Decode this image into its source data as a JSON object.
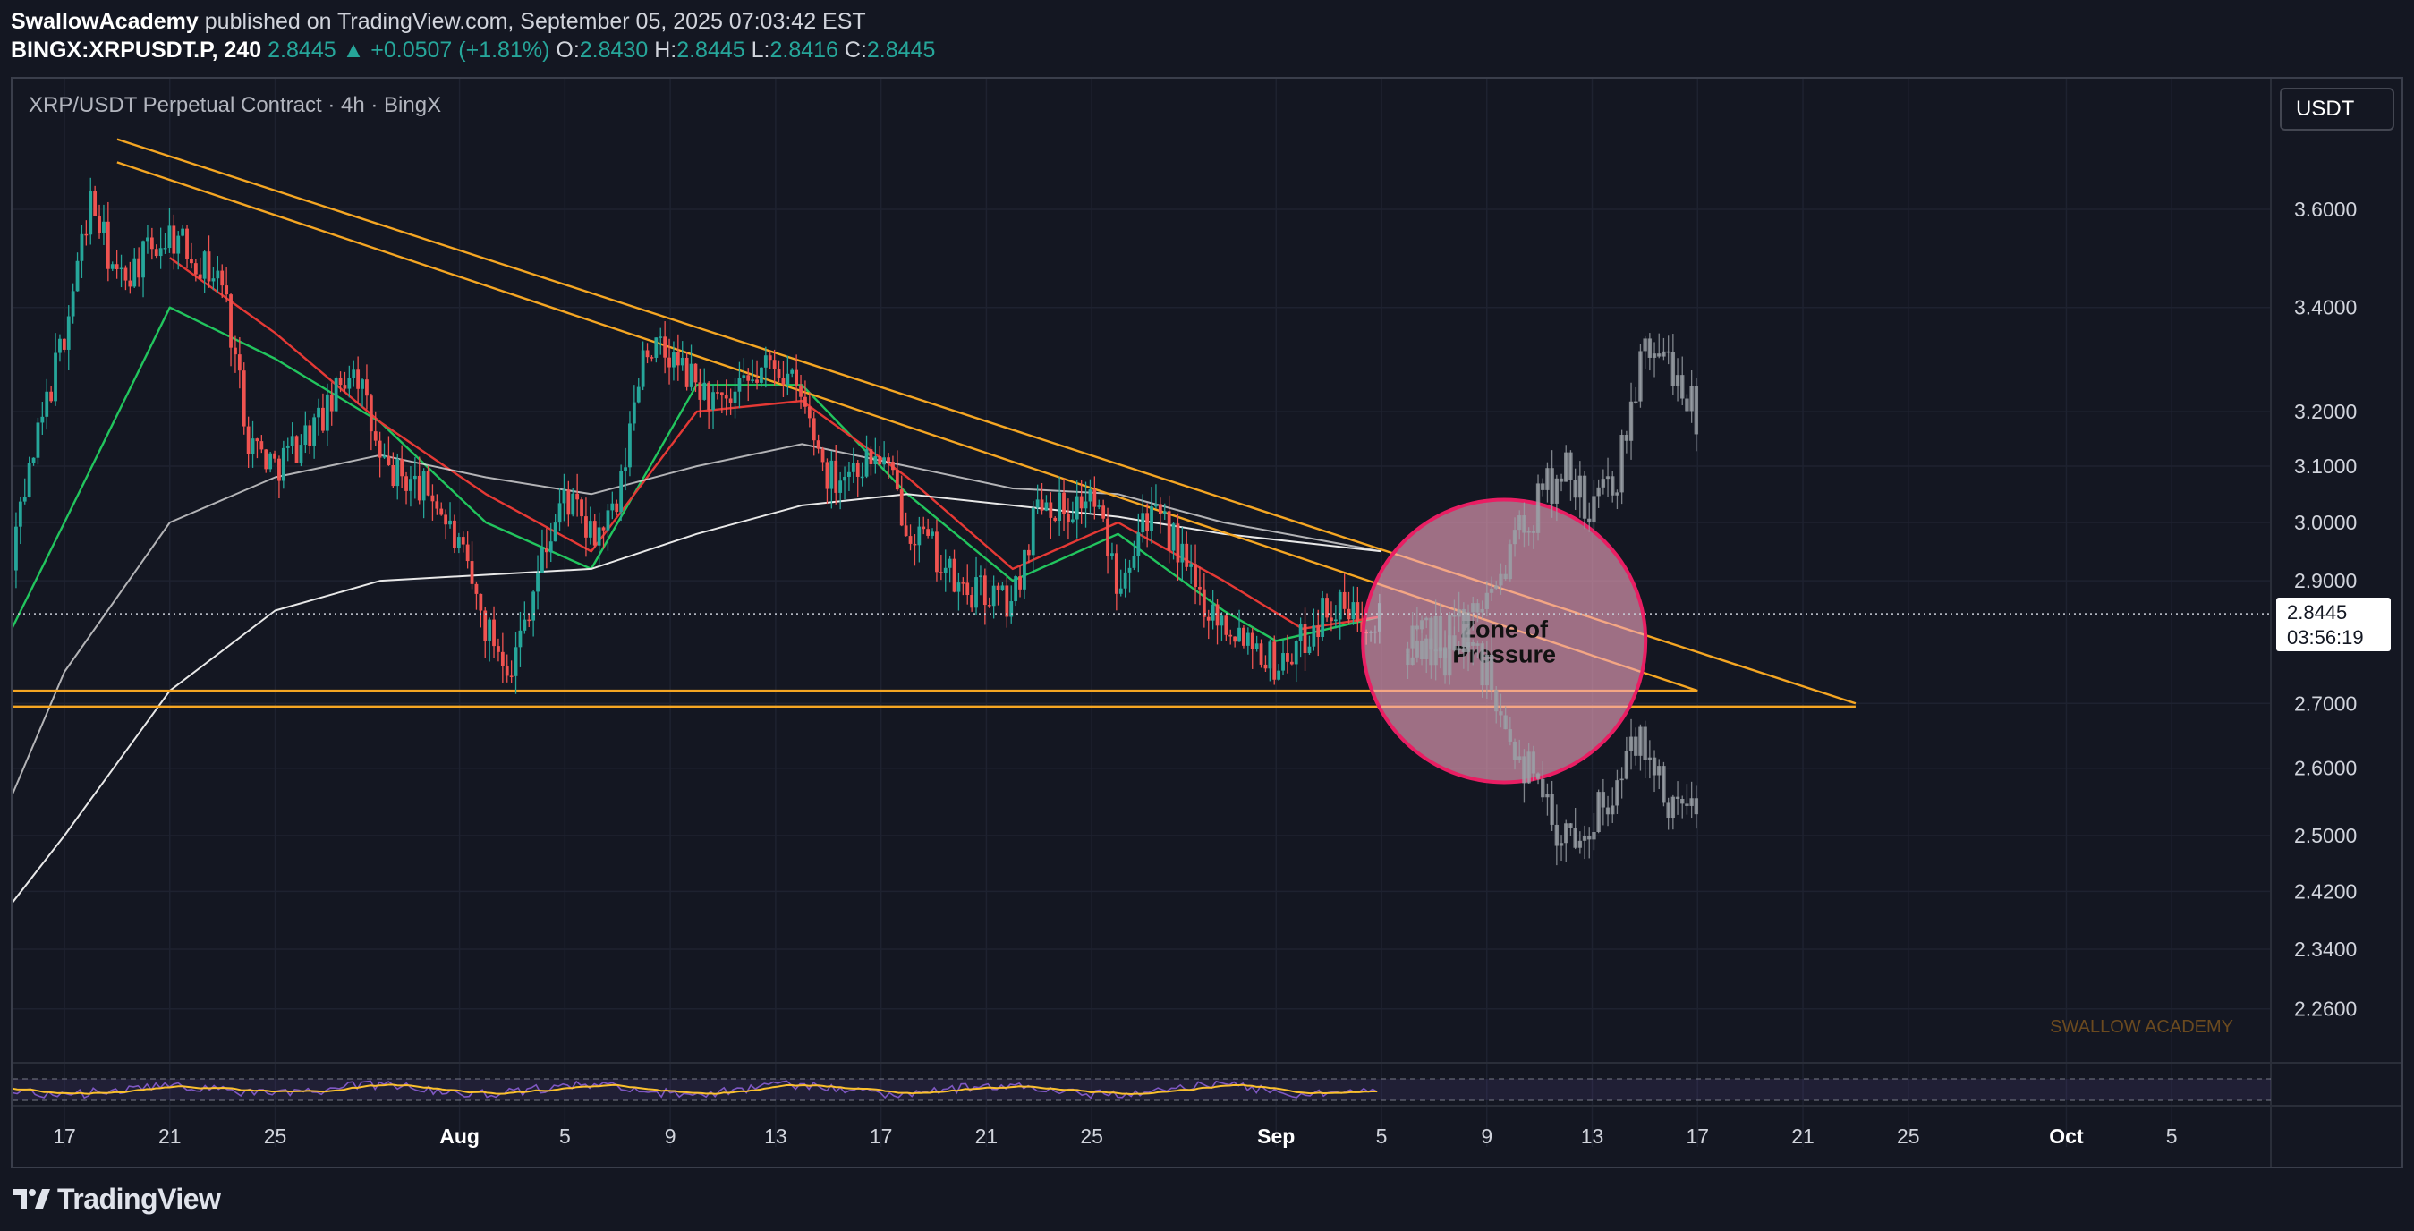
{
  "header": {
    "author": "SwallowAcademy",
    "published_text": "published on TradingView.com, September 05, 2025 07:03:42 EST",
    "symbol": "BINGX:XRPUSDT.P, 240",
    "last": "2.8445",
    "change": "▲ +0.0507 (+1.81%)",
    "o_label": "O:",
    "o_value": "2.8430",
    "h_label": "H:",
    "h_value": "2.8445",
    "l_label": "L:",
    "l_value": "2.8416",
    "c_label": "C:",
    "c_value": "2.8445"
  },
  "legend": {
    "description": "XRP/USDT Perpetual Contract · 4h · BingX",
    "currency": "USDT"
  },
  "last_price_tag": {
    "price": "2.8445",
    "countdown": "03:56:19"
  },
  "watermark": "SWALLOW ACADEMY",
  "footer": {
    "brand": "TradingView"
  },
  "colors": {
    "background": "#141722",
    "up": "#26a69a",
    "down": "#ef5350",
    "trendline": "#f5a623",
    "ma_fast": "#22c55e",
    "ma_slow_red": "#e53935",
    "ma_white": "#ffffff",
    "zone_fill": "#f4a6c0",
    "zone_stroke": "#e91e63",
    "projection": "#9aa0a6",
    "rsi_line": "#7e57c2",
    "rsi_signal": "#fbc02d"
  },
  "chart_data": {
    "type": "candlestick",
    "title": "XRP/USDT Perpetual Contract · 4h · BingX",
    "y_axis": {
      "scale": "log",
      "range": [
        2.2,
        3.8
      ],
      "ticks": [
        "3.6000",
        "3.4000",
        "3.2000",
        "3.1000",
        "3.0000",
        "2.9000",
        "2.8445",
        "2.7000",
        "2.6000",
        "2.5000",
        "2.4200",
        "2.3400",
        "2.2600"
      ]
    },
    "x_axis": {
      "ticks": [
        "17",
        "21",
        "25",
        "Aug",
        "5",
        "9",
        "13",
        "17",
        "21",
        "25",
        "Sep",
        "5",
        "9",
        "13",
        "17",
        "21",
        "25",
        "Oct",
        "5"
      ]
    },
    "price_path": [
      [
        "2025-07-13",
        2.78
      ],
      [
        "2025-07-15",
        2.95
      ],
      [
        "2025-07-17",
        3.35
      ],
      [
        "2025-07-18",
        3.62
      ],
      [
        "2025-07-19",
        3.45
      ],
      [
        "2025-07-21",
        3.55
      ],
      [
        "2025-07-22",
        3.5
      ],
      [
        "2025-07-23",
        3.45
      ],
      [
        "2025-07-24",
        3.15
      ],
      [
        "2025-07-25",
        3.1
      ],
      [
        "2025-07-27",
        3.2
      ],
      [
        "2025-07-28",
        3.3
      ],
      [
        "2025-07-29",
        3.1
      ],
      [
        "2025-07-31",
        3.05
      ],
      [
        "2025-08-01",
        2.95
      ],
      [
        "2025-08-02",
        2.82
      ],
      [
        "2025-08-03",
        2.76
      ],
      [
        "2025-08-04",
        2.92
      ],
      [
        "2025-08-05",
        3.05
      ],
      [
        "2025-08-06",
        2.97
      ],
      [
        "2025-08-07",
        3.02
      ],
      [
        "2025-08-08",
        3.33
      ],
      [
        "2025-08-09",
        3.3
      ],
      [
        "2025-08-10",
        3.25
      ],
      [
        "2025-08-11",
        3.2
      ],
      [
        "2025-08-12",
        3.25
      ],
      [
        "2025-08-13",
        3.3
      ],
      [
        "2025-08-14",
        3.22
      ],
      [
        "2025-08-15",
        3.08
      ],
      [
        "2025-08-16",
        3.1
      ],
      [
        "2025-08-17",
        3.12
      ],
      [
        "2025-08-18",
        3.0
      ],
      [
        "2025-08-19",
        2.95
      ],
      [
        "2025-08-20",
        2.88
      ],
      [
        "2025-08-21",
        2.88
      ],
      [
        "2025-08-22",
        2.86
      ],
      [
        "2025-08-23",
        3.05
      ],
      [
        "2025-08-24",
        3.02
      ],
      [
        "2025-08-25",
        3.05
      ],
      [
        "2025-08-26",
        2.9
      ],
      [
        "2025-08-27",
        3.02
      ],
      [
        "2025-08-28",
        2.98
      ],
      [
        "2025-08-29",
        2.88
      ],
      [
        "2025-08-30",
        2.83
      ],
      [
        "2025-08-31",
        2.81
      ],
      [
        "2025-09-01",
        2.76
      ],
      [
        "2025-09-02",
        2.8
      ],
      [
        "2025-09-03",
        2.86
      ],
      [
        "2025-09-04",
        2.84
      ],
      [
        "2025-09-05",
        2.8445
      ]
    ],
    "moving_averages": [
      {
        "color": "green",
        "path": [
          [
            "2025-07-13",
            2.65
          ],
          [
            "2025-07-17",
            3.0
          ],
          [
            "2025-07-21",
            3.4
          ],
          [
            "2025-07-25",
            3.3
          ],
          [
            "2025-07-29",
            3.18
          ],
          [
            "2025-08-02",
            3.0
          ],
          [
            "2025-08-06",
            2.92
          ],
          [
            "2025-08-10",
            3.25
          ],
          [
            "2025-08-14",
            3.25
          ],
          [
            "2025-08-18",
            3.05
          ],
          [
            "2025-08-22",
            2.9
          ],
          [
            "2025-08-26",
            2.98
          ],
          [
            "2025-08-30",
            2.85
          ],
          [
            "2025-09-01",
            2.8
          ],
          [
            "2025-09-05",
            2.84
          ]
        ]
      },
      {
        "color": "red",
        "path": [
          [
            "2025-07-21",
            3.5
          ],
          [
            "2025-07-25",
            3.35
          ],
          [
            "2025-07-29",
            3.18
          ],
          [
            "2025-08-02",
            3.05
          ],
          [
            "2025-08-06",
            2.95
          ],
          [
            "2025-08-10",
            3.2
          ],
          [
            "2025-08-14",
            3.22
          ],
          [
            "2025-08-18",
            3.08
          ],
          [
            "2025-08-22",
            2.92
          ],
          [
            "2025-08-26",
            3.0
          ],
          [
            "2025-08-30",
            2.9
          ],
          [
            "2025-09-02",
            2.82
          ],
          [
            "2025-09-05",
            2.84
          ]
        ]
      },
      {
        "color": "white",
        "path": [
          [
            "2025-07-13",
            2.38
          ],
          [
            "2025-07-17",
            2.75
          ],
          [
            "2025-07-21",
            3.0
          ],
          [
            "2025-07-25",
            3.08
          ],
          [
            "2025-07-29",
            3.12
          ],
          [
            "2025-08-02",
            3.08
          ],
          [
            "2025-08-06",
            3.05
          ],
          [
            "2025-08-10",
            3.1
          ],
          [
            "2025-08-14",
            3.14
          ],
          [
            "2025-08-18",
            3.1
          ],
          [
            "2025-08-22",
            3.06
          ],
          [
            "2025-08-26",
            3.05
          ],
          [
            "2025-08-30",
            3.0
          ],
          [
            "2025-09-05",
            2.95
          ]
        ]
      },
      {
        "color": "white",
        "path": [
          [
            "2025-07-13",
            2.31
          ],
          [
            "2025-07-17",
            2.5
          ],
          [
            "2025-07-21",
            2.72
          ],
          [
            "2025-07-25",
            2.85
          ],
          [
            "2025-07-29",
            2.9
          ],
          [
            "2025-08-02",
            2.91
          ],
          [
            "2025-08-06",
            2.92
          ],
          [
            "2025-08-10",
            2.98
          ],
          [
            "2025-08-14",
            3.03
          ],
          [
            "2025-08-18",
            3.05
          ],
          [
            "2025-08-22",
            3.03
          ],
          [
            "2025-08-26",
            3.01
          ],
          [
            "2025-08-30",
            2.98
          ],
          [
            "2025-09-05",
            2.95
          ]
        ]
      }
    ],
    "trendlines": [
      {
        "from": [
          "2025-07-19",
          3.75
        ],
        "to": [
          "2025-09-23",
          2.7
        ]
      },
      {
        "from": [
          "2025-07-19",
          3.7
        ],
        "to": [
          "2025-09-17",
          2.72
        ]
      },
      {
        "from": [
          "2025-07-13",
          2.72
        ],
        "to": [
          "2025-09-17",
          2.72
        ]
      },
      {
        "from": [
          "2025-07-13",
          2.695
        ],
        "to": [
          "2025-09-23",
          2.695
        ]
      }
    ],
    "annotation": {
      "text": "Zone of Pressure",
      "center": [
        "2025-09-10",
        2.8
      ]
    },
    "projections": [
      {
        "scenario": "bullish",
        "path": [
          [
            "2025-09-06",
            2.78
          ],
          [
            "2025-09-09",
            2.85
          ],
          [
            "2025-09-11",
            3.05
          ],
          [
            "2025-09-12",
            3.1
          ],
          [
            "2025-09-13",
            3.0
          ],
          [
            "2025-09-14",
            3.1
          ],
          [
            "2025-09-15",
            3.32
          ],
          [
            "2025-09-16",
            3.3
          ],
          [
            "2025-09-17",
            3.2
          ]
        ]
      },
      {
        "scenario": "bearish",
        "path": [
          [
            "2025-09-06",
            2.78
          ],
          [
            "2025-09-09",
            2.76
          ],
          [
            "2025-09-11",
            2.55
          ],
          [
            "2025-09-12",
            2.5
          ],
          [
            "2025-09-13",
            2.53
          ],
          [
            "2025-09-14",
            2.58
          ],
          [
            "2025-09-15",
            2.65
          ],
          [
            "2025-09-16",
            2.55
          ],
          [
            "2025-09-17",
            2.52
          ]
        ]
      }
    ]
  }
}
